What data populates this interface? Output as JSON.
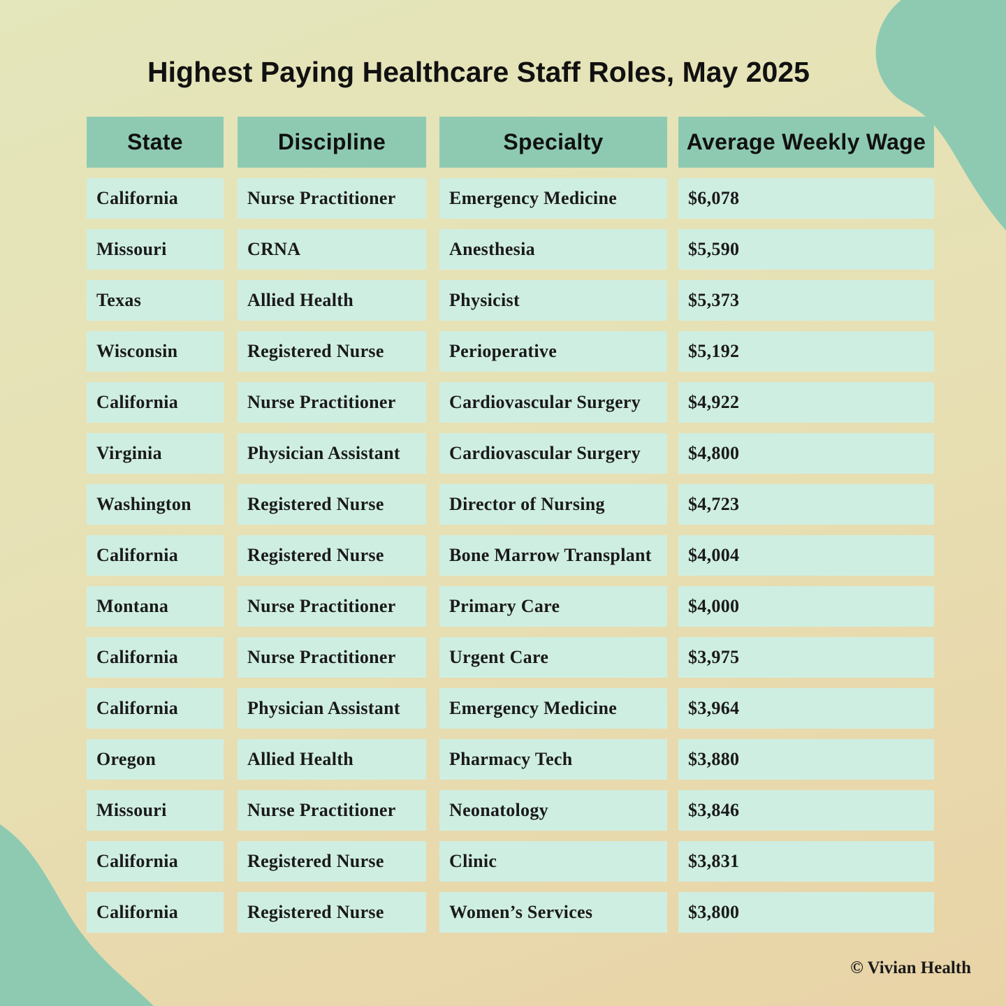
{
  "header": {
    "title": "Highest Paying Healthcare Staff Roles, May 2025"
  },
  "table": {
    "headers": [
      "State",
      "Discipline",
      "Specialty",
      "Average Weekly Wage"
    ],
    "rows": [
      [
        "California",
        "Nurse Practitioner",
        "Emergency Medicine",
        "$6,078"
      ],
      [
        "Missouri",
        "CRNA",
        "Anesthesia",
        "$5,590"
      ],
      [
        "Texas",
        "Allied Health",
        "Physicist",
        "$5,373"
      ],
      [
        "Wisconsin",
        "Registered Nurse",
        "Perioperative",
        "$5,192"
      ],
      [
        "California",
        "Nurse Practitioner",
        "Cardiovascular Surgery",
        "$4,922"
      ],
      [
        "Virginia",
        "Physician Assistant",
        "Cardiovascular Surgery",
        "$4,800"
      ],
      [
        "Washington",
        "Registered Nurse",
        "Director of Nursing",
        "$4,723"
      ],
      [
        "California",
        "Registered Nurse",
        "Bone Marrow Transplant",
        "$4,004"
      ],
      [
        "Montana",
        "Nurse Practitioner",
        "Primary Care",
        "$4,000"
      ],
      [
        "California",
        "Nurse Practitioner",
        "Urgent Care",
        "$3,975"
      ],
      [
        "California",
        "Physician Assistant",
        "Emergency Medicine",
        "$3,964"
      ],
      [
        "Oregon",
        "Allied Health",
        "Pharmacy Tech",
        "$3,880"
      ],
      [
        "Missouri",
        "Nurse Practitioner",
        "Neonatology",
        "$3,846"
      ],
      [
        "California",
        "Registered Nurse",
        "Clinic",
        "$3,831"
      ],
      [
        "California",
        "Registered Nurse",
        "Women’s Services",
        "$3,800"
      ]
    ]
  },
  "footer": {
    "credit": "© Vivian Health"
  }
}
